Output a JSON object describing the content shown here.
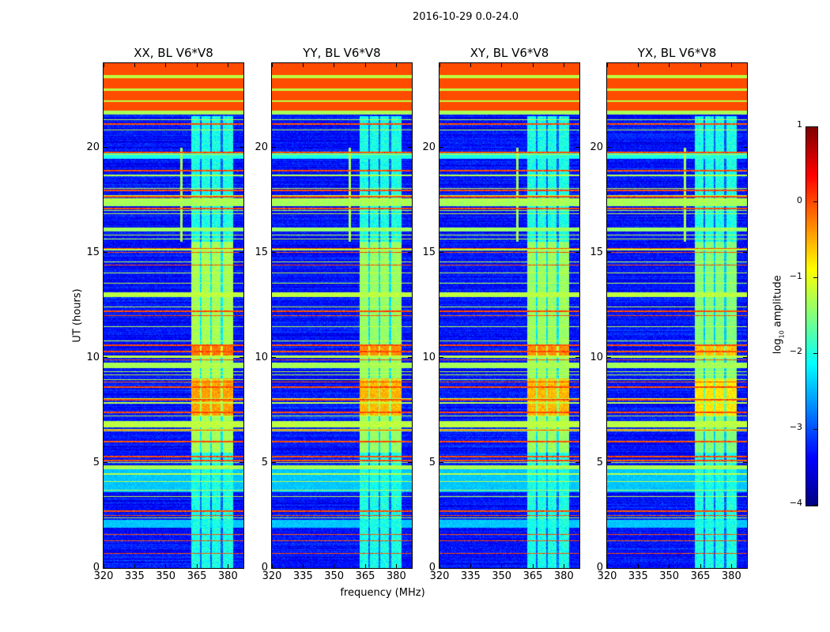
{
  "chart_data": {
    "type": "heatmap",
    "title": "2016-10-29 0.0-24.0",
    "xlabel": "frequency (MHz)",
    "ylabel": "UT (hours)",
    "xlim": [
      320,
      387.5
    ],
    "ylim": [
      0,
      24
    ],
    "xticks": [
      320,
      335,
      350,
      365,
      380
    ],
    "yticks": [
      0,
      5,
      10,
      15,
      20
    ],
    "colormap": "jet",
    "colorbar": {
      "label_main": "log",
      "label_sub": "10",
      "label_rest": " amplitude",
      "range": [
        -4,
        1
      ],
      "ticks": [
        1,
        0,
        -1,
        -2,
        -3,
        -4
      ]
    },
    "panels": [
      {
        "title": "XX, BL V6*V8",
        "block_strength": 1.0,
        "block_offset_mhz": 0
      },
      {
        "title": "YY, BL V6*V8",
        "block_strength": 0.9,
        "block_offset_mhz": 0
      },
      {
        "title": "XY, BL V6*V8",
        "block_strength": 0.9,
        "block_offset_mhz": 0
      },
      {
        "title": "YX, BL V6*V8",
        "block_strength": 0.7,
        "block_offset_mhz": 0
      }
    ],
    "background_log_amplitude": -3.3,
    "channel_block": {
      "freq_range": [
        362.5,
        382.5
      ],
      "dividers": [
        367,
        372,
        377
      ],
      "time_range": [
        0,
        21.5
      ],
      "value": -2.0
    },
    "strong_block": {
      "time_range": [
        5.5,
        15.5
      ],
      "value": -1.3
    },
    "hot_regions": [
      {
        "time_range": [
          7.2,
          9.0
        ],
        "value": -0.4
      },
      {
        "time_range": [
          10.0,
          10.6
        ],
        "value": -0.2
      }
    ],
    "spike": {
      "freq": 357.5,
      "time_range": [
        15.5,
        20.0
      ],
      "value": -1.3
    },
    "bands": [
      {
        "time_range": [
          21.6,
          24.0
        ],
        "value": 0.0
      },
      {
        "time_range": [
          23.3,
          23.45
        ],
        "value": -1.2
      },
      {
        "time_range": [
          22.7,
          22.8
        ],
        "value": -1.2
      },
      {
        "time_range": [
          22.15,
          22.25
        ],
        "value": -1.2
      },
      {
        "time_range": [
          21.55,
          21.75
        ],
        "value": -1.3
      },
      {
        "time_range": [
          19.45,
          19.7
        ],
        "value": -2.0
      },
      {
        "time_range": [
          17.2,
          17.5
        ],
        "value": -1.3
      },
      {
        "time_range": [
          16.0,
          16.2
        ],
        "value": -1.4
      },
      {
        "time_range": [
          12.9,
          13.1
        ],
        "value": -1.2
      },
      {
        "time_range": [
          9.5,
          9.75
        ],
        "value": -1.3
      },
      {
        "time_range": [
          6.7,
          7.0
        ],
        "value": -1.2
      },
      {
        "time_range": [
          4.7,
          4.9
        ],
        "value": -1.3
      },
      {
        "time_range": [
          3.6,
          4.7
        ],
        "value": -2.4
      },
      {
        "time_range": [
          1.9,
          2.3
        ],
        "value": -2.4
      }
    ],
    "rfi_lines_hours": [
      21.1,
      19.75,
      18.9,
      17.95,
      17.65,
      17.1,
      15.2,
      15.0,
      14.4,
      12.2,
      12.0,
      10.6,
      10.3,
      9.9,
      8.85,
      8.6,
      8.0,
      7.4,
      6.55,
      6.0,
      5.3,
      5.1,
      2.7,
      2.5,
      1.6,
      1.3,
      0.7
    ],
    "rfi_line_value": -0.1
  }
}
